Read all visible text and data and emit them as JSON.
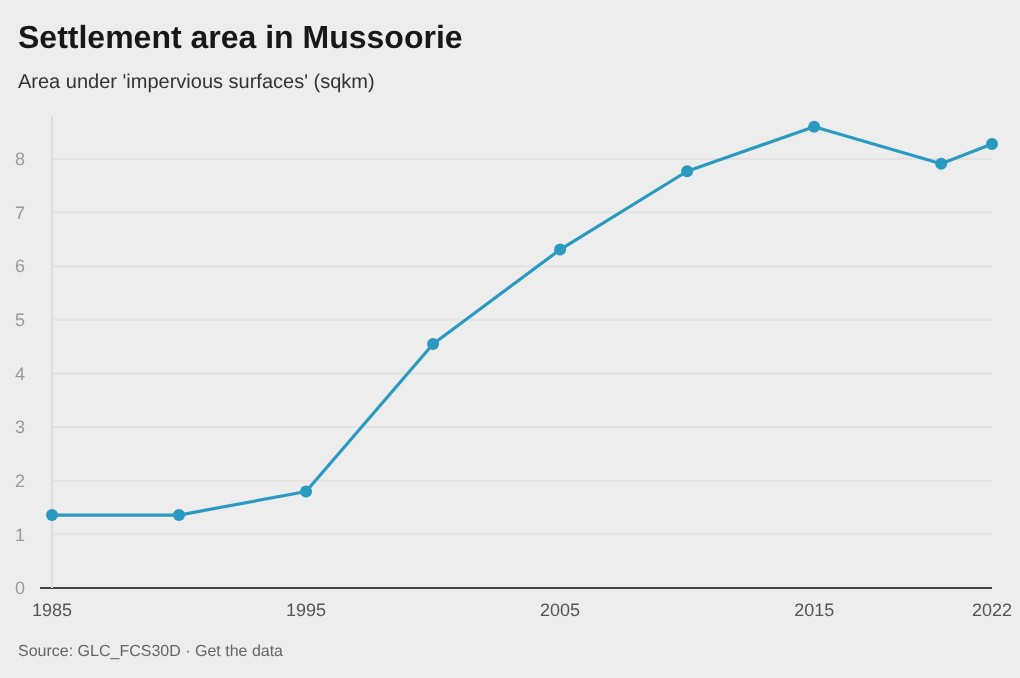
{
  "chart_data": {
    "type": "line",
    "title": "Settlement area in Mussoorie",
    "subtitle": "Area under 'impervious surfaces' (sqkm)",
    "x": [
      1985,
      1990,
      1995,
      2000,
      2005,
      2010,
      2015,
      2020,
      2022
    ],
    "series": [
      {
        "color": "#2b9ac1",
        "values": [
          1.36,
          1.36,
          1.8,
          4.55,
          6.31,
          7.77,
          8.6,
          7.91,
          8.28
        ]
      }
    ],
    "xlim": [
      1985,
      2022
    ],
    "xticks": [
      1985,
      1995,
      2005,
      2015,
      2022
    ],
    "ylim": [
      0,
      8.8
    ],
    "yticks": [
      0,
      1,
      2,
      3,
      4,
      5,
      6,
      7,
      8
    ],
    "grid": "y",
    "marker": "circle",
    "line_style": "solid",
    "annotations": [
      "Source: GLC_FCS30D · Get the data"
    ]
  }
}
